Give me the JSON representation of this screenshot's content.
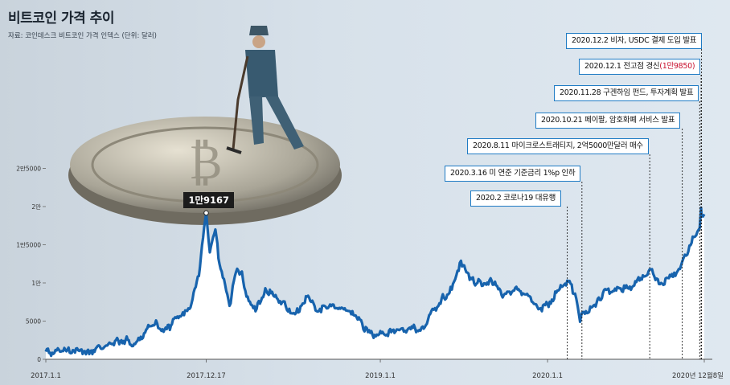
{
  "title": "비트코인 가격 추이",
  "source": "자료: 코인데스크 비트코인 가격 인덱스 (단위: 달러)",
  "colors": {
    "line": "#1763ad",
    "fill": "#ffffff",
    "callout_border": "#1f7bc4",
    "highlight": "#c8102e",
    "background": "#d9e4ee"
  },
  "peak": {
    "label": "1만9167",
    "date": "2017.12.17",
    "value": 19167
  },
  "events": [
    {
      "date_label": "2020.2",
      "text": "코로나19 대유행",
      "highlight": ""
    },
    {
      "date_label": "2020.3.16",
      "text": "미 연준 기준금리 1%p 인하",
      "highlight": ""
    },
    {
      "date_label": "2020.8.11",
      "text": "마이크로스트래티지, 2억5000만달러 매수",
      "highlight": ""
    },
    {
      "date_label": "2020.10.21",
      "text": "페이팔, 암호화폐 서비스 발표",
      "highlight": ""
    },
    {
      "date_label": "2020.11.28",
      "text": "구겐하임 펀드, 투자계획 발표",
      "highlight": ""
    },
    {
      "date_label": "2020.12.1",
      "text": "전고점 경신",
      "highlight": "1만9850"
    },
    {
      "date_label": "2020.12.2",
      "text": "비자, USDC 결제 도입 발표",
      "highlight": ""
    }
  ],
  "chart_data": {
    "type": "area",
    "title": "비트코인 가격 추이",
    "ylabel": "단위: 달러",
    "ylim": [
      0,
      25000
    ],
    "yticks": [
      {
        "value": 0,
        "label": "0"
      },
      {
        "value": 5000,
        "label": "5000"
      },
      {
        "value": 10000,
        "label": "1만"
      },
      {
        "value": 15000,
        "label": "1만5000"
      },
      {
        "value": 20000,
        "label": "2만"
      },
      {
        "value": 25000,
        "label": "2만5000"
      }
    ],
    "xticks": [
      "2017.1.1",
      "2017.12.17",
      "2019.1.1",
      "2020.1.1",
      "2020년 12월8일"
    ],
    "x_range": [
      "2017-01-01",
      "2020-12-08"
    ],
    "series": [
      {
        "x": [
          "2017-01-01",
          "2017-01-15",
          "2017-02-01",
          "2017-02-15",
          "2017-03-01",
          "2017-03-15",
          "2017-04-01",
          "2017-04-15",
          "2017-05-01",
          "2017-05-15",
          "2017-06-01",
          "2017-06-15",
          "2017-07-01",
          "2017-07-15",
          "2017-08-01",
          "2017-08-15",
          "2017-09-01",
          "2017-09-15",
          "2017-10-01",
          "2017-10-15",
          "2017-11-01",
          "2017-11-15",
          "2017-12-01",
          "2017-12-17",
          "2017-12-25",
          "2018-01-06",
          "2018-01-15",
          "2018-02-06",
          "2018-02-20",
          "2018-03-05",
          "2018-03-15",
          "2018-04-06",
          "2018-04-25",
          "2018-05-15",
          "2018-06-01",
          "2018-06-29",
          "2018-07-25",
          "2018-08-15",
          "2018-09-01",
          "2018-10-01",
          "2018-11-01",
          "2018-11-15",
          "2018-11-25",
          "2018-12-15",
          "2019-01-01",
          "2019-02-01",
          "2019-03-01",
          "2019-04-01",
          "2019-04-15",
          "2019-05-15",
          "2019-06-01",
          "2019-06-26",
          "2019-07-15",
          "2019-08-01",
          "2019-09-01",
          "2019-09-25",
          "2019-10-25",
          "2019-11-15",
          "2019-12-17",
          "2020-01-01",
          "2020-02-13",
          "2020-03-01",
          "2020-03-12",
          "2020-03-20",
          "2020-04-15",
          "2020-05-01",
          "2020-06-01",
          "2020-07-01",
          "2020-07-27",
          "2020-08-11",
          "2020-09-05",
          "2020-10-01",
          "2020-10-21",
          "2020-11-01",
          "2020-11-15",
          "2020-11-26",
          "2020-11-28",
          "2020-12-01",
          "2020-12-02",
          "2020-12-08"
        ],
        "values": [
          1000,
          850,
          1000,
          1050,
          1200,
          1100,
          1080,
          1200,
          1400,
          1800,
          2400,
          2500,
          2500,
          2000,
          2800,
          4300,
          4700,
          3600,
          4400,
          5600,
          6400,
          7300,
          10900,
          19167,
          14000,
          17000,
          12500,
          7000,
          11400,
          11500,
          8200,
          6600,
          9300,
          8200,
          7500,
          5900,
          8200,
          6300,
          7000,
          6600,
          6300,
          5500,
          3900,
          3200,
          3700,
          3450,
          3850,
          4150,
          5150,
          8000,
          8700,
          12900,
          10400,
          10000,
          10300,
          8100,
          9500,
          8500,
          6700,
          7200,
          10300,
          8600,
          4900,
          6200,
          6900,
          8700,
          9450,
          9100,
          11000,
          11800,
          10000,
          10800,
          12800,
          13700,
          16000,
          17000,
          17200,
          19850,
          18800,
          19000
        ]
      }
    ]
  }
}
